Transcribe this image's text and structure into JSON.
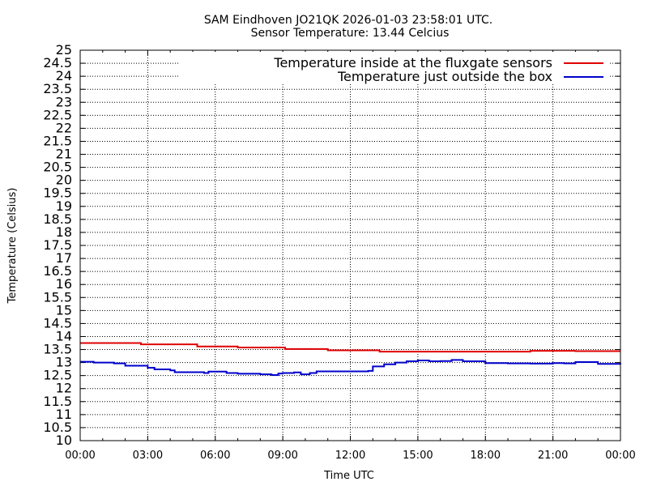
{
  "chart_data": {
    "type": "line",
    "title": "SAM Eindhoven JO21QK 2026-01-03 23:58:01 UTC.",
    "subtitle": "Sensor Temperature: 13.44 Celcius",
    "xlabel": "Time UTC",
    "ylabel": "Temperature (Celsius)",
    "xlim": [
      0,
      24
    ],
    "ylim": [
      10,
      25
    ],
    "grid": true,
    "legend_position": "top-right",
    "x_tick_labels": [
      "00:00",
      "03:00",
      "06:00",
      "09:00",
      "12:00",
      "15:00",
      "18:00",
      "21:00",
      "00:00"
    ],
    "y_tick_labels": [
      "10",
      "10.5",
      "11",
      "11.5",
      "12",
      "12.5",
      "13",
      "13.5",
      "14",
      "14.5",
      "15",
      "15.5",
      "16",
      "16.5",
      "17",
      "17.5",
      "18",
      "18.5",
      "19",
      "19.5",
      "20",
      "20.5",
      "21",
      "21.5",
      "22",
      "22.5",
      "23",
      "23.5",
      "24",
      "24.5",
      "25"
    ],
    "series": [
      {
        "name": "Temperature inside at the fluxgate sensors",
        "color": "#e00000",
        "x": [
          0,
          2.5,
          2.7,
          4.9,
          5.2,
          6.7,
          7.0,
          8.8,
          9.1,
          10.8,
          11.0,
          13.0,
          13.3,
          15.0,
          18.0,
          20.0,
          22.0,
          24.0
        ],
        "y": [
          13.75,
          13.75,
          13.7,
          13.7,
          13.62,
          13.62,
          13.58,
          13.58,
          13.52,
          13.52,
          13.47,
          13.47,
          13.42,
          13.42,
          13.42,
          13.45,
          13.44,
          13.44
        ]
      },
      {
        "name": "Temperature just outside the box",
        "color": "#0000cc",
        "x": [
          0,
          0.6,
          1.5,
          2.0,
          3.0,
          3.3,
          4.0,
          4.2,
          5.5,
          5.7,
          6.5,
          7.0,
          8.0,
          8.5,
          8.8,
          9.0,
          9.5,
          9.8,
          10.2,
          10.5,
          11.0,
          12.0,
          12.8,
          13.0,
          13.5,
          14.0,
          14.5,
          15.0,
          15.5,
          16.0,
          16.5,
          17.0,
          17.5,
          18.0,
          19.0,
          20.0,
          21.0,
          21.5,
          22.0,
          23.0,
          24.0
        ],
        "y": [
          13.03,
          13.0,
          12.97,
          12.88,
          12.8,
          12.74,
          12.7,
          12.63,
          12.6,
          12.65,
          12.6,
          12.57,
          12.55,
          12.52,
          12.58,
          12.6,
          12.62,
          12.55,
          12.6,
          12.66,
          12.66,
          12.66,
          12.68,
          12.85,
          12.93,
          13.0,
          13.05,
          13.08,
          13.05,
          13.06,
          13.1,
          13.05,
          13.05,
          12.98,
          12.97,
          12.96,
          12.98,
          12.97,
          13.02,
          12.95,
          12.93
        ]
      }
    ]
  }
}
